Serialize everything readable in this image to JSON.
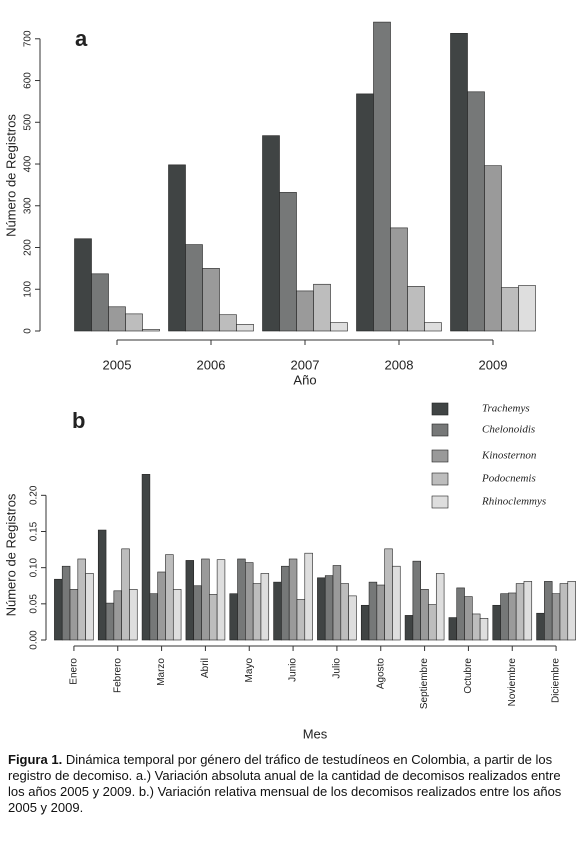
{
  "chart_data": [
    {
      "type": "bar",
      "title": "a",
      "y_label": "Número de Registros",
      "x_label": "Año",
      "categories": [
        "2005",
        "2006",
        "2007",
        "2008",
        "2009"
      ],
      "series": [
        {
          "color": "#404444",
          "values": [
            221,
            398,
            468,
            568,
            713
          ]
        },
        {
          "color": "#767878",
          "values": [
            137,
            207,
            332,
            740,
            573
          ]
        },
        {
          "color": "#9a9a9a",
          "values": [
            58,
            150,
            96,
            247,
            396
          ]
        },
        {
          "color": "#bdbdbd",
          "values": [
            41,
            39,
            112,
            107,
            104
          ]
        },
        {
          "color": "#dedede",
          "values": [
            4,
            16,
            20,
            20,
            109
          ]
        }
      ],
      "ylim": [
        0,
        745
      ],
      "yticks": [
        0,
        100,
        200,
        300,
        400,
        500,
        600,
        700
      ]
    },
    {
      "type": "bar",
      "title": "b",
      "y_label": "Número de Registros",
      "x_label": "Mes",
      "categories": [
        "Enero",
        "Febrero",
        "Marzo",
        "Abril",
        "Mayo",
        "Junio",
        "Julio",
        "Agosto",
        "Septiembre",
        "Octubre",
        "Noviembre",
        "Diciembre"
      ],
      "series": [
        {
          "name": "Trachemys",
          "color": "#404444",
          "values": [
            0.084,
            0.152,
            0.229,
            0.11,
            0.064,
            0.08,
            0.086,
            0.048,
            0.034,
            0.031,
            0.048,
            0.037
          ]
        },
        {
          "name": "Chelonoidis",
          "color": "#767878",
          "values": [
            0.102,
            0.051,
            0.064,
            0.075,
            0.112,
            0.102,
            0.089,
            0.08,
            0.109,
            0.072,
            0.064,
            0.081
          ]
        },
        {
          "name": "Kinosternon",
          "color": "#9a9a9a",
          "values": [
            0.07,
            0.068,
            0.094,
            0.112,
            0.107,
            0.112,
            0.103,
            0.076,
            0.07,
            0.06,
            0.065,
            0.064
          ]
        },
        {
          "name": "Podocnemis",
          "color": "#bdbdbd",
          "values": [
            0.112,
            0.126,
            0.118,
            0.063,
            0.078,
            0.056,
            0.078,
            0.126,
            0.049,
            0.036,
            0.078,
            0.078
          ]
        },
        {
          "name": "Rhinoclemmys",
          "color": "#dedede",
          "values": [
            0.092,
            0.07,
            0.07,
            0.111,
            0.092,
            0.12,
            0.061,
            0.102,
            0.092,
            0.03,
            0.081,
            0.081
          ]
        }
      ],
      "ylim": [
        0,
        0.235
      ],
      "yticks": [
        {
          "value": 0,
          "label": "0.00"
        },
        0.05,
        {
          "value": 0.1,
          "label": "0.10"
        },
        0.15,
        {
          "value": 0.2,
          "label": "0.20"
        }
      ]
    }
  ],
  "caption": {
    "label": "Figura 1.",
    "text": "Dinámica temporal por género del tráfico de testudíneos en Colombia, a partir de los registro de decomiso. a.) Variación absoluta anual de la cantidad de decomisos realizados entre los años 2005 y 2009. b.) Variación relativa mensual de los decomisos realizados entre los años 2005 y 2009."
  }
}
